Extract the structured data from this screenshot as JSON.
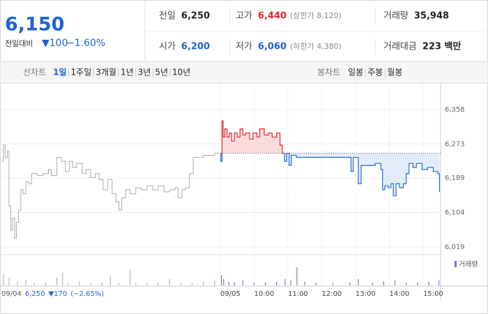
{
  "header": {
    "price": "6,150",
    "change_label": "전일대비",
    "change": "▼100",
    "change_rate": "−1.60%",
    "stats": [
      [
        {
          "label": "전일",
          "value": "6,250",
          "color": "#222222"
        },
        {
          "label": "고가",
          "value": "6,440",
          "note": "(상한가 8,120)",
          "color": "#e3262b"
        },
        {
          "label": "거래량",
          "value": "35,948",
          "color": "#222222"
        }
      ],
      [
        {
          "label": "시가",
          "value": "6,200",
          "color": "#1f63d2"
        },
        {
          "label": "저가",
          "value": "6,060",
          "note": "(하한가 4,380)",
          "color": "#1f63d2"
        },
        {
          "label": "거래대금",
          "value": "223 백만",
          "color": "#222222"
        }
      ]
    ]
  },
  "tabs": {
    "line_label": "선차트",
    "periods": [
      "1일",
      "1주일",
      "3개월",
      "1년",
      "3년",
      "5년",
      "10년"
    ],
    "selected": 0,
    "candle_label": "봉차트",
    "candles": [
      "일봉",
      "주봉",
      "월봉"
    ]
  },
  "chart_data": {
    "type": "line",
    "baseline": 6250,
    "up_color": "#e3262b",
    "down_color": "#1f6ad6",
    "xlim": [
      -391,
      391
    ],
    "ylim": [
      6000,
      6387
    ],
    "yticks": [
      {
        "value": 6358,
        "label": "6,358"
      },
      {
        "value": 6273,
        "label": "6,273"
      },
      {
        "value": 6189,
        "label": "6,189"
      },
      {
        "value": 6104,
        "label": "6,104"
      },
      {
        "value": 6019,
        "label": "6,019"
      }
    ],
    "xticks": [
      {
        "value": 0,
        "label": "09/05"
      },
      {
        "value": 60,
        "label": "10:00"
      },
      {
        "value": 120,
        "label": "11:00"
      },
      {
        "value": 180,
        "label": "12:00"
      },
      {
        "value": 240,
        "label": "13:00"
      },
      {
        "value": 300,
        "label": "14:00"
      },
      {
        "value": 360,
        "label": "15:00"
      }
    ],
    "series": [
      {
        "color": "#aaaaaa",
        "x": [
          -388,
          -385,
          -382,
          -378,
          -375,
          -372,
          -369,
          -365,
          -362,
          -358,
          -354,
          -350,
          -345,
          -340,
          -335,
          -325,
          -315,
          -305,
          -300,
          -290,
          -282,
          -275,
          -268,
          -262,
          -255,
          -245,
          -238,
          -230,
          -222,
          -215,
          -208,
          -200,
          -192,
          -185,
          -180,
          -175,
          -168,
          -160,
          -150,
          -140,
          -130,
          -120,
          -110,
          -100,
          -90,
          -80,
          -75,
          -68,
          -62,
          -55,
          -48,
          -40,
          -30,
          -20,
          -10,
          -2
        ],
        "values": [
          6230,
          6270,
          6240,
          6255,
          6120,
          6060,
          6090,
          6040,
          6080,
          6110,
          6160,
          6150,
          6180,
          6175,
          6200,
          6195,
          6200,
          6210,
          6195,
          6240,
          6230,
          6205,
          6230,
          6215,
          6225,
          6200,
          6210,
          6190,
          6200,
          6185,
          6160,
          6185,
          6150,
          6130,
          6110,
          6140,
          6160,
          6150,
          6165,
          6160,
          6170,
          6160,
          6170,
          6155,
          6160,
          6165,
          6140,
          6160,
          6165,
          6200,
          6240,
          6240,
          6245,
          6245,
          6250,
          6250
        ]
      },
      {
        "color": "split",
        "x": [
          0,
          1,
          3,
          5,
          8,
          12,
          16,
          20,
          25,
          30,
          35,
          40,
          45,
          52,
          58,
          65,
          70,
          78,
          85,
          92,
          100,
          106,
          110,
          114,
          118,
          122,
          126,
          135,
          150,
          170,
          190,
          205,
          230,
          232,
          236,
          242,
          245,
          250,
          260,
          275,
          285,
          288,
          292,
          298,
          303,
          307,
          312,
          318,
          325,
          330,
          335,
          342,
          348,
          358,
          368,
          378,
          386,
          389
        ],
        "values": [
          6250,
          6230,
          6330,
          6290,
          6310,
          6290,
          6300,
          6280,
          6300,
          6290,
          6310,
          6295,
          6300,
          6285,
          6300,
          6290,
          6310,
          6295,
          6300,
          6290,
          6300,
          6270,
          6250,
          6230,
          6250,
          6220,
          6245,
          6240,
          6240,
          6240,
          6240,
          6240,
          6240,
          6205,
          6240,
          6240,
          6175,
          6220,
          6220,
          6225,
          6210,
          6160,
          6170,
          6165,
          6175,
          6145,
          6175,
          6165,
          6175,
          6200,
          6225,
          6215,
          6225,
          6210,
          6215,
          6205,
          6200,
          6155
        ]
      }
    ],
    "volume": {
      "name": "거래량",
      "ylim": [
        0,
        100
      ],
      "x": [
        -385,
        -375,
        -360,
        -345,
        -330,
        -310,
        -290,
        -280,
        -270,
        -250,
        -230,
        -210,
        -195,
        -180,
        -160,
        -150,
        -130,
        -110,
        -90,
        -70,
        -50,
        -30,
        -10,
        2,
        6,
        15,
        25,
        40,
        60,
        80,
        100,
        115,
        125,
        136,
        150,
        170,
        200,
        230,
        245,
        270,
        290,
        310,
        330,
        350,
        370,
        388
      ],
      "values": [
        45,
        30,
        15,
        20,
        10,
        12,
        30,
        50,
        8,
        15,
        10,
        12,
        35,
        10,
        60,
        8,
        10,
        12,
        25,
        10,
        8,
        15,
        20,
        40,
        25,
        15,
        12,
        20,
        10,
        12,
        15,
        25,
        20,
        70,
        15,
        10,
        8,
        12,
        25,
        10,
        15,
        20,
        10,
        12,
        15,
        20
      ]
    }
  },
  "footer": {
    "date": "09/04",
    "price": "6,250",
    "change": "▼170",
    "rate": "(−2.65%)"
  }
}
